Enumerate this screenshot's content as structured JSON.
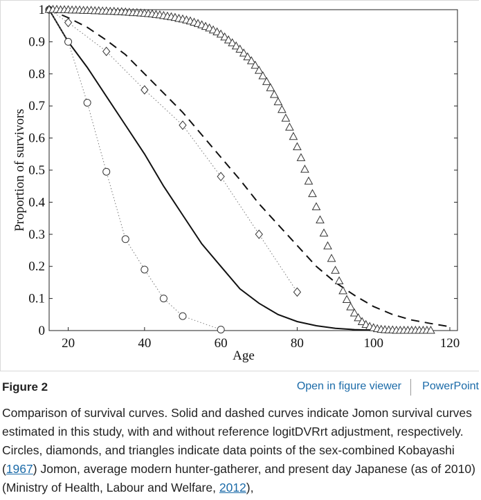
{
  "chart_data": {
    "type": "line",
    "title": "",
    "xlabel": "Age",
    "ylabel": "Proportion of survivors",
    "xlim": [
      15,
      122
    ],
    "ylim": [
      0,
      1
    ],
    "xticks": [
      20,
      40,
      60,
      80,
      100,
      120
    ],
    "yticks": [
      0,
      0.1,
      0.2,
      0.3,
      0.4,
      0.5,
      0.6,
      0.7,
      0.8,
      0.9,
      1
    ],
    "ytick_labels": [
      "0",
      "0.1",
      "0.2",
      "0.3",
      "0.4",
      "0.5",
      "0.6",
      "0.7",
      "0.8",
      "0.9",
      "1"
    ],
    "series": [
      {
        "name": "Jomon survival curve (with logitDVRrt adjustment)",
        "style": "solid",
        "x": [
          15,
          20,
          25,
          30,
          35,
          40,
          45,
          50,
          55,
          60,
          65,
          70,
          75,
          80,
          85,
          90,
          95,
          100,
          105
        ],
        "y": [
          1.0,
          0.9,
          0.82,
          0.73,
          0.64,
          0.55,
          0.45,
          0.36,
          0.27,
          0.2,
          0.13,
          0.085,
          0.05,
          0.028,
          0.015,
          0.007,
          0.003,
          0.001,
          0.0
        ]
      },
      {
        "name": "Jomon survival curve (without adjustment)",
        "style": "dashed",
        "x": [
          15,
          20,
          25,
          30,
          35,
          40,
          45,
          50,
          55,
          60,
          65,
          70,
          75,
          80,
          85,
          90,
          95,
          100,
          105,
          110,
          115,
          120
        ],
        "y": [
          1.0,
          0.975,
          0.945,
          0.905,
          0.86,
          0.8,
          0.74,
          0.68,
          0.61,
          0.54,
          0.47,
          0.395,
          0.33,
          0.265,
          0.2,
          0.15,
          0.11,
          0.075,
          0.05,
          0.033,
          0.022,
          0.012
        ]
      },
      {
        "name": "Kobayashi (1967) Jomon",
        "marker": "circle",
        "x": [
          15,
          20,
          25,
          30,
          35,
          40,
          45,
          50,
          60
        ],
        "y": [
          1.0,
          0.9,
          0.71,
          0.495,
          0.285,
          0.19,
          0.1,
          0.045,
          0.003
        ]
      },
      {
        "name": "Average modern hunter-gatherer",
        "marker": "diamond",
        "x": [
          15,
          20,
          30,
          40,
          50,
          60,
          70,
          80
        ],
        "y": [
          1.0,
          0.96,
          0.87,
          0.75,
          0.64,
          0.48,
          0.3,
          0.12
        ]
      },
      {
        "name": "Present day Japanese (as of 2010)",
        "marker": "triangle",
        "x": [
          15,
          16,
          17,
          18,
          19,
          20,
          21,
          22,
          23,
          24,
          25,
          26,
          27,
          28,
          29,
          30,
          31,
          32,
          33,
          34,
          35,
          36,
          37,
          38,
          39,
          40,
          41,
          42,
          43,
          44,
          45,
          46,
          47,
          48,
          49,
          50,
          51,
          52,
          53,
          54,
          55,
          56,
          57,
          58,
          59,
          60,
          61,
          62,
          63,
          64,
          65,
          66,
          67,
          68,
          69,
          70,
          71,
          72,
          73,
          74,
          75,
          76,
          77,
          78,
          79,
          80,
          81,
          82,
          83,
          84,
          85,
          86,
          87,
          88,
          89,
          90,
          91,
          92,
          93,
          94,
          95,
          96,
          97,
          98,
          99,
          100,
          101,
          102,
          103,
          104,
          105,
          106,
          107,
          108,
          109,
          110,
          111,
          112,
          113,
          114,
          115
        ],
        "y": [
          1.0,
          1.0,
          1.0,
          0.999,
          0.999,
          0.999,
          0.998,
          0.998,
          0.998,
          0.997,
          0.997,
          0.997,
          0.996,
          0.996,
          0.995,
          0.995,
          0.994,
          0.994,
          0.993,
          0.993,
          0.992,
          0.991,
          0.99,
          0.99,
          0.989,
          0.988,
          0.987,
          0.986,
          0.984,
          0.983,
          0.981,
          0.979,
          0.977,
          0.975,
          0.972,
          0.97,
          0.967,
          0.964,
          0.96,
          0.956,
          0.952,
          0.947,
          0.942,
          0.936,
          0.93,
          0.923,
          0.914,
          0.905,
          0.896,
          0.886,
          0.876,
          0.864,
          0.852,
          0.84,
          0.826,
          0.81,
          0.793,
          0.775,
          0.756,
          0.735,
          0.712,
          0.688,
          0.661,
          0.633,
          0.604,
          0.572,
          0.538,
          0.502,
          0.465,
          0.426,
          0.385,
          0.344,
          0.303,
          0.263,
          0.224,
          0.187,
          0.154,
          0.123,
          0.096,
          0.073,
          0.054,
          0.039,
          0.027,
          0.018,
          0.012,
          0.008,
          0.005,
          0.003,
          0.002,
          0.001,
          0.001,
          0.0,
          0.0,
          0.0,
          0.0,
          0.0,
          0.0,
          0.0,
          0.0,
          0.0,
          0.0
        ]
      }
    ]
  },
  "figure": {
    "label": "Figure 2",
    "viewer_link": "Open in figure viewer",
    "powerpoint_link": "PowerPoint",
    "caption_part1": "Comparison of survival curves. Solid and dashed curves indicate Jomon survival curves estimated in this study, with and without reference logitDVRrt adjustment, respectively. Circles, diamonds, and triangles indicate data points of the sex-combined Kobayashi (",
    "ref1": "1967",
    "caption_part2": ") Jomon, average modern hunter-gatherer, and present day Japanese (as of 2010) (Ministry of Health, Labour and Welfare, ",
    "ref2": "2012",
    "caption_part3": "),"
  }
}
